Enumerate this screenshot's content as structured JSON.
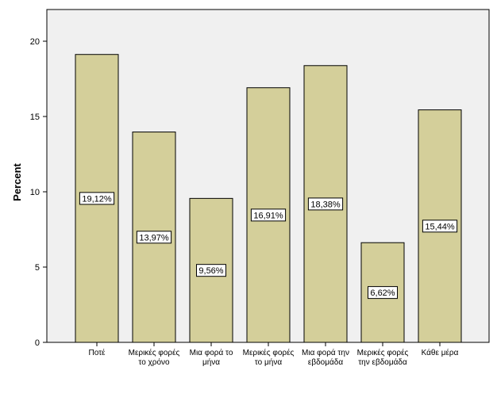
{
  "chart_data": {
    "type": "bar",
    "title": "",
    "xlabel": "",
    "ylabel": "Percent",
    "ylim": [
      0,
      20
    ],
    "yticks": [
      0,
      5,
      10,
      15,
      20
    ],
    "grid": false,
    "categories": [
      [
        "Ποτέ"
      ],
      [
        "Μερικές φορές",
        "το χρόνο"
      ],
      [
        "Μια φορά το",
        "μήνα"
      ],
      [
        "Μερικές φορές",
        "το μήνα"
      ],
      [
        "Μια φορά την",
        "εβδομάδα"
      ],
      [
        "Μερικές φορές",
        "την εβδομάδα"
      ],
      [
        "Κάθε μέρα"
      ]
    ],
    "values": [
      19.12,
      13.97,
      9.56,
      16.91,
      18.38,
      6.62,
      15.44
    ],
    "data_labels": [
      "19,12%",
      "13,97%",
      "9,56%",
      "16,91%",
      "18,38%",
      "6,62%",
      "15,44%"
    ],
    "colors": {
      "plot_background": "#f0f0f0",
      "bar_fill": "#d4cf9a",
      "bar_stroke": "#000000",
      "label_box": "#ffffff"
    }
  }
}
